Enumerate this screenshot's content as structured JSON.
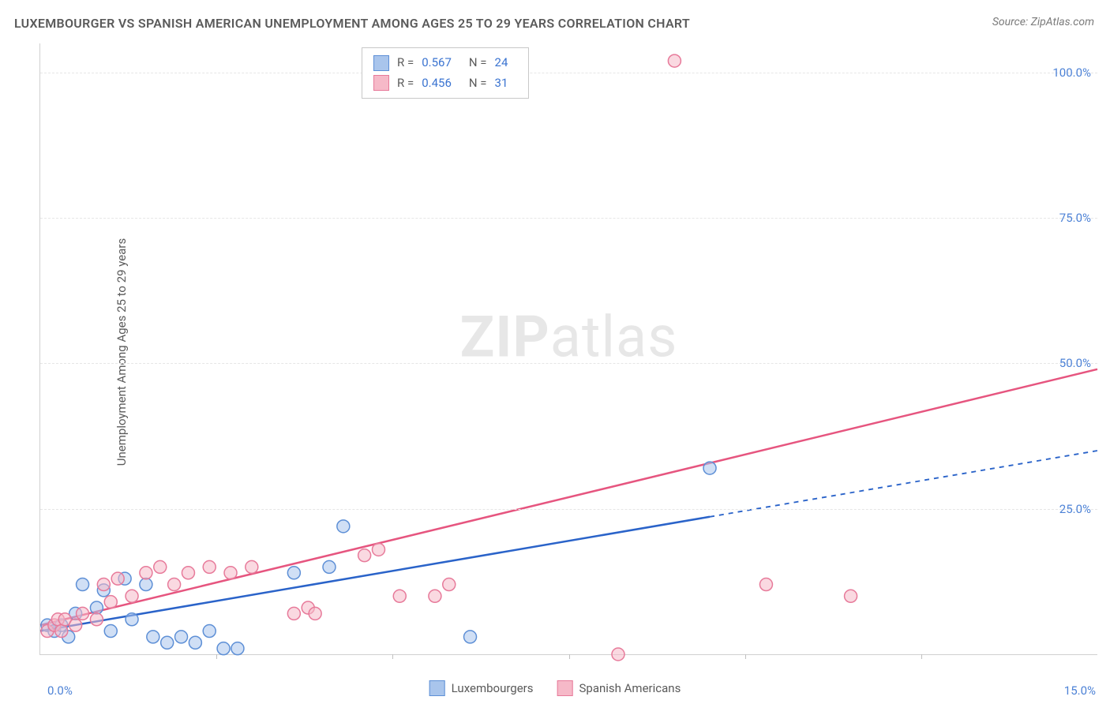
{
  "title": "LUXEMBOURGER VS SPANISH AMERICAN UNEMPLOYMENT AMONG AGES 25 TO 29 YEARS CORRELATION CHART",
  "source_label": "Source: ZipAtlas.com",
  "ylabel": "Unemployment Among Ages 25 to 29 years",
  "watermark": {
    "bold": "ZIP",
    "rest": "atlas"
  },
  "chart": {
    "type": "scatter",
    "xlim": [
      0,
      15
    ],
    "ylim": [
      0,
      105
    ],
    "x_tick_left": "0.0%",
    "x_tick_right": "15.0%",
    "x_minor_step": 2.5,
    "y_ticks": [
      {
        "v": 25,
        "label": "25.0%"
      },
      {
        "v": 50,
        "label": "50.0%"
      },
      {
        "v": 75,
        "label": "75.0%"
      },
      {
        "v": 100,
        "label": "100.0%"
      }
    ],
    "background_color": "#ffffff",
    "grid_color": "#e6e6e6",
    "axis_color": "#d0d0d0",
    "tick_font_color": "#4d82d6",
    "marker_radius": 8,
    "marker_stroke_width": 1.5,
    "line_width": 2.5
  },
  "series": [
    {
      "name": "Luxembourgers",
      "color_fill": "#a9c5ec",
      "color_stroke": "#5d8fd6",
      "line_color": "#2a63c9",
      "R": "0.567",
      "N": "24",
      "trend": {
        "x1": 0,
        "y1": 4,
        "x2": 15,
        "y2": 35,
        "solid_until_x": 9.5
      },
      "points": [
        [
          0.1,
          5
        ],
        [
          0.2,
          4
        ],
        [
          0.3,
          5
        ],
        [
          0.4,
          3
        ],
        [
          0.5,
          7
        ],
        [
          0.6,
          12
        ],
        [
          0.8,
          8
        ],
        [
          0.9,
          11
        ],
        [
          1.0,
          4
        ],
        [
          1.2,
          13
        ],
        [
          1.3,
          6
        ],
        [
          1.5,
          12
        ],
        [
          1.6,
          3
        ],
        [
          1.8,
          2
        ],
        [
          2.0,
          3
        ],
        [
          2.2,
          2
        ],
        [
          2.4,
          4
        ],
        [
          2.6,
          1
        ],
        [
          2.8,
          1
        ],
        [
          3.6,
          14
        ],
        [
          4.1,
          15
        ],
        [
          4.3,
          22
        ],
        [
          6.1,
          3
        ],
        [
          9.5,
          32
        ]
      ]
    },
    {
      "name": "Spanish Americans",
      "color_fill": "#f6b9c8",
      "color_stroke": "#e77a9a",
      "line_color": "#e6557f",
      "R": "0.456",
      "N": "31",
      "trend": {
        "x1": 0,
        "y1": 5,
        "x2": 15,
        "y2": 49,
        "solid_until_x": 15
      },
      "points": [
        [
          0.1,
          4
        ],
        [
          0.2,
          5
        ],
        [
          0.25,
          6
        ],
        [
          0.3,
          4
        ],
        [
          0.35,
          6
        ],
        [
          0.5,
          5
        ],
        [
          0.6,
          7
        ],
        [
          0.8,
          6
        ],
        [
          0.9,
          12
        ],
        [
          1.0,
          9
        ],
        [
          1.1,
          13
        ],
        [
          1.3,
          10
        ],
        [
          1.5,
          14
        ],
        [
          1.7,
          15
        ],
        [
          1.9,
          12
        ],
        [
          2.1,
          14
        ],
        [
          2.4,
          15
        ],
        [
          2.7,
          14
        ],
        [
          3.0,
          15
        ],
        [
          3.6,
          7
        ],
        [
          3.8,
          8
        ],
        [
          3.9,
          7
        ],
        [
          4.6,
          17
        ],
        [
          4.8,
          18
        ],
        [
          5.1,
          10
        ],
        [
          5.6,
          10
        ],
        [
          5.8,
          12
        ],
        [
          8.2,
          0
        ],
        [
          9.0,
          102
        ],
        [
          10.3,
          12
        ],
        [
          11.5,
          10
        ]
      ]
    }
  ],
  "corr_legend": {
    "rows": [
      {
        "swatch_fill": "#a9c5ec",
        "swatch_stroke": "#5d8fd6",
        "R_label": "R =",
        "R": "0.567",
        "N_label": "N =",
        "N": "24"
      },
      {
        "swatch_fill": "#f6b9c8",
        "swatch_stroke": "#e77a9a",
        "R_label": "R =",
        "R": "0.456",
        "N_label": "N =",
        "N": "31"
      }
    ]
  },
  "bottom_legend": [
    {
      "swatch_fill": "#a9c5ec",
      "swatch_stroke": "#5d8fd6",
      "label": "Luxembourgers"
    },
    {
      "swatch_fill": "#f6b9c8",
      "swatch_stroke": "#e77a9a",
      "label": "Spanish Americans"
    }
  ]
}
